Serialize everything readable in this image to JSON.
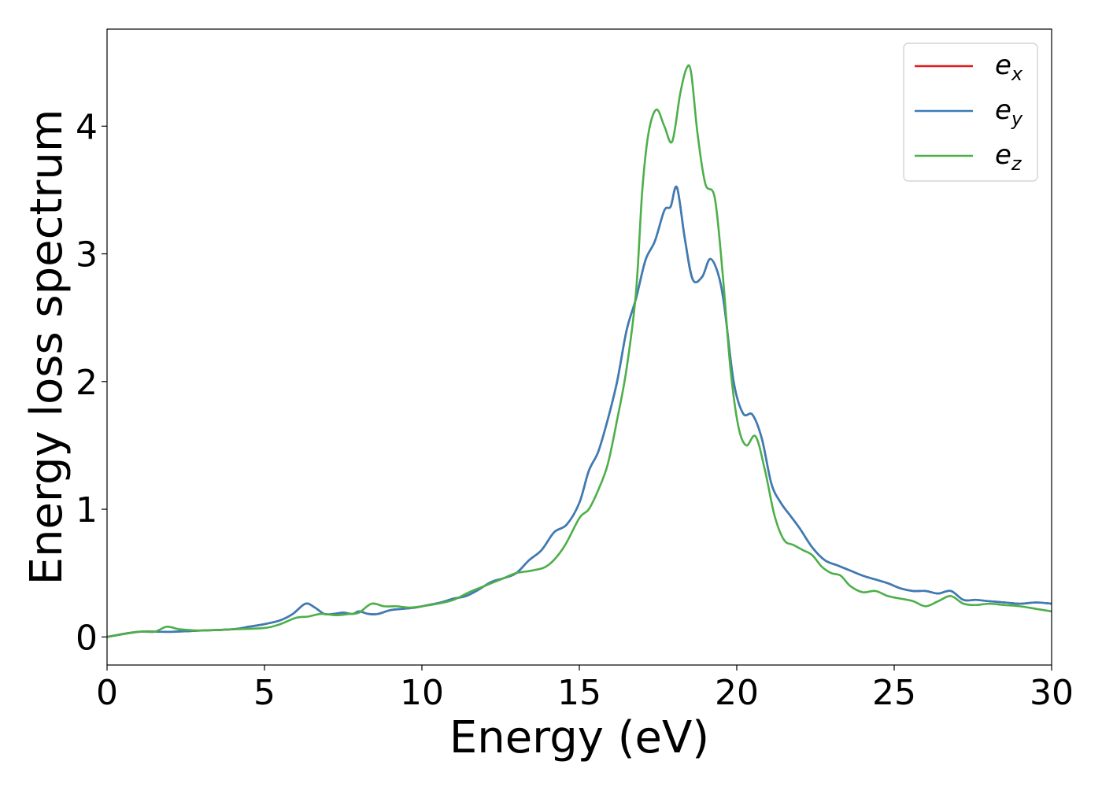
{
  "chart_data": {
    "type": "line",
    "xlabel": "Energy (eV)",
    "ylabel": "Energy loss spectrum",
    "xlim": [
      0,
      30
    ],
    "ylim": [
      -0.22,
      4.76
    ],
    "xticks": [
      0,
      5,
      10,
      15,
      20,
      25,
      30
    ],
    "yticks": [
      0,
      1,
      2,
      3,
      4
    ],
    "grid": false,
    "legend_position": "top-right",
    "series": [
      {
        "name": "e_x",
        "label_base": "e",
        "label_sub": "x",
        "color": "#e41a1c",
        "x": [
          0,
          1,
          2,
          3,
          4,
          4.5,
          5,
          5.5,
          5.9,
          6.3,
          6.6,
          6.9,
          7.2,
          7.5,
          7.8,
          8,
          8.3,
          8.6,
          9,
          9.4,
          9.8,
          10.2,
          10.6,
          11,
          11.4,
          11.8,
          12.2,
          12.6,
          13,
          13.4,
          13.8,
          14.2,
          14.6,
          15,
          15.3,
          15.6,
          15.9,
          16.2,
          16.5,
          16.8,
          17.1,
          17.4,
          17.7,
          17.9,
          18.1,
          18.35,
          18.6,
          18.9,
          19.15,
          19.4,
          19.6,
          19.9,
          20.2,
          20.5,
          20.8,
          21.1,
          21.4,
          21.7,
          22,
          22.4,
          22.8,
          23.2,
          23.6,
          24,
          24.4,
          24.8,
          25.2,
          25.6,
          26,
          26.4,
          26.8,
          27.2,
          27.6,
          28,
          28.5,
          29,
          29.5,
          30
        ],
        "y": [
          0,
          0.04,
          0.04,
          0.05,
          0.06,
          0.08,
          0.1,
          0.13,
          0.18,
          0.26,
          0.23,
          0.18,
          0.18,
          0.19,
          0.18,
          0.2,
          0.18,
          0.18,
          0.21,
          0.22,
          0.23,
          0.25,
          0.27,
          0.3,
          0.32,
          0.37,
          0.43,
          0.46,
          0.5,
          0.6,
          0.68,
          0.82,
          0.88,
          1.05,
          1.3,
          1.45,
          1.7,
          2.0,
          2.4,
          2.65,
          2.95,
          3.1,
          3.34,
          3.37,
          3.52,
          3.12,
          2.8,
          2.82,
          2.96,
          2.85,
          2.6,
          2.0,
          1.75,
          1.74,
          1.55,
          1.2,
          1.05,
          0.95,
          0.85,
          0.7,
          0.6,
          0.56,
          0.52,
          0.48,
          0.45,
          0.42,
          0.38,
          0.36,
          0.36,
          0.34,
          0.36,
          0.29,
          0.29,
          0.28,
          0.27,
          0.26,
          0.27,
          0.26
        ]
      },
      {
        "name": "e_y",
        "label_base": "e",
        "label_sub": "y",
        "color": "#377eb8",
        "x": [
          0,
          1,
          2,
          3,
          4,
          4.5,
          5,
          5.5,
          5.9,
          6.3,
          6.6,
          6.9,
          7.2,
          7.5,
          7.8,
          8,
          8.3,
          8.6,
          9,
          9.4,
          9.8,
          10.2,
          10.6,
          11,
          11.4,
          11.8,
          12.2,
          12.6,
          13,
          13.4,
          13.8,
          14.2,
          14.6,
          15,
          15.3,
          15.6,
          15.9,
          16.2,
          16.5,
          16.8,
          17.1,
          17.4,
          17.7,
          17.9,
          18.1,
          18.35,
          18.6,
          18.9,
          19.15,
          19.4,
          19.6,
          19.9,
          20.2,
          20.5,
          20.8,
          21.1,
          21.4,
          21.7,
          22,
          22.4,
          22.8,
          23.2,
          23.6,
          24,
          24.4,
          24.8,
          25.2,
          25.6,
          26,
          26.4,
          26.8,
          27.2,
          27.6,
          28,
          28.5,
          29,
          29.5,
          30
        ],
        "y": [
          0,
          0.04,
          0.04,
          0.05,
          0.06,
          0.08,
          0.1,
          0.13,
          0.18,
          0.26,
          0.23,
          0.18,
          0.18,
          0.19,
          0.18,
          0.2,
          0.18,
          0.18,
          0.21,
          0.22,
          0.23,
          0.25,
          0.27,
          0.3,
          0.32,
          0.37,
          0.43,
          0.46,
          0.5,
          0.6,
          0.68,
          0.82,
          0.88,
          1.05,
          1.3,
          1.45,
          1.7,
          2.0,
          2.4,
          2.65,
          2.95,
          3.1,
          3.34,
          3.37,
          3.52,
          3.12,
          2.8,
          2.82,
          2.96,
          2.85,
          2.6,
          2.0,
          1.75,
          1.74,
          1.55,
          1.2,
          1.05,
          0.95,
          0.85,
          0.7,
          0.6,
          0.56,
          0.52,
          0.48,
          0.45,
          0.42,
          0.38,
          0.36,
          0.36,
          0.34,
          0.36,
          0.29,
          0.29,
          0.28,
          0.27,
          0.26,
          0.27,
          0.26
        ]
      },
      {
        "name": "e_z",
        "label_base": "e",
        "label_sub": "z",
        "color": "#4daf4a",
        "x": [
          0,
          1,
          1.5,
          1.9,
          2.3,
          3,
          4,
          5,
          5.5,
          6,
          6.4,
          6.8,
          7.3,
          7.7,
          8,
          8.4,
          8.8,
          9.2,
          9.6,
          10,
          10.5,
          11,
          11.5,
          12,
          12.5,
          13,
          13.5,
          14,
          14.5,
          15,
          15.3,
          15.6,
          15.9,
          16.2,
          16.5,
          16.8,
          17,
          17.2,
          17.45,
          17.7,
          17.95,
          18.2,
          18.4,
          18.55,
          18.75,
          19,
          19.3,
          19.55,
          19.8,
          20.05,
          20.3,
          20.6,
          20.9,
          21.2,
          21.5,
          21.8,
          22.1,
          22.4,
          22.7,
          23,
          23.3,
          23.6,
          24,
          24.4,
          24.8,
          25.2,
          25.6,
          26,
          26.4,
          26.8,
          27.2,
          27.6,
          28,
          28.5,
          29,
          29.5,
          30
        ],
        "y": [
          0,
          0.04,
          0.04,
          0.08,
          0.06,
          0.05,
          0.06,
          0.07,
          0.1,
          0.15,
          0.16,
          0.18,
          0.17,
          0.18,
          0.19,
          0.26,
          0.24,
          0.24,
          0.23,
          0.24,
          0.26,
          0.29,
          0.35,
          0.4,
          0.45,
          0.5,
          0.52,
          0.56,
          0.7,
          0.93,
          1.0,
          1.15,
          1.35,
          1.7,
          2.1,
          2.7,
          3.5,
          3.95,
          4.13,
          4.0,
          3.88,
          4.25,
          4.45,
          4.42,
          3.95,
          3.55,
          3.44,
          2.85,
          2.1,
          1.65,
          1.5,
          1.57,
          1.3,
          0.95,
          0.76,
          0.72,
          0.68,
          0.64,
          0.55,
          0.5,
          0.48,
          0.4,
          0.35,
          0.36,
          0.32,
          0.3,
          0.28,
          0.24,
          0.28,
          0.32,
          0.26,
          0.25,
          0.26,
          0.25,
          0.24,
          0.22,
          0.2
        ]
      }
    ]
  }
}
